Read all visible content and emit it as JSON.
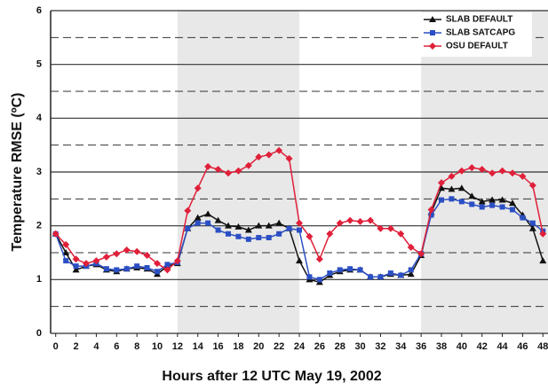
{
  "chart_data": {
    "type": "line",
    "xlabel": "Hours after 12 UTC May 19, 2002",
    "ylabel": "Temperature RMSE (ºC)",
    "x": [
      0,
      1,
      2,
      3,
      4,
      5,
      6,
      7,
      8,
      9,
      10,
      11,
      12,
      13,
      14,
      15,
      16,
      17,
      18,
      19,
      20,
      21,
      22,
      23,
      24,
      25,
      26,
      27,
      28,
      29,
      30,
      31,
      32,
      33,
      34,
      35,
      36,
      37,
      38,
      39,
      40,
      41,
      42,
      43,
      44,
      45,
      46,
      47,
      48
    ],
    "xlim": [
      -0.5,
      48.5
    ],
    "xticks": [
      0,
      2,
      4,
      6,
      8,
      10,
      12,
      14,
      16,
      18,
      20,
      22,
      24,
      26,
      28,
      30,
      32,
      34,
      36,
      38,
      40,
      42,
      44,
      46,
      48
    ],
    "ylim": [
      0,
      6
    ],
    "yticks": [
      0,
      1,
      2,
      3,
      4,
      5,
      6
    ],
    "yminor_ticks": [
      0.5,
      1.5,
      2.5,
      3.5,
      4.5,
      5.5
    ],
    "grid": true,
    "shaded_ranges": [
      [
        12,
        24
      ],
      [
        36,
        48.5
      ]
    ],
    "legend": "upper right",
    "series": [
      {
        "name": "SLAB DEFAULT",
        "color": "#111111",
        "marker": "triangle",
        "values": [
          1.85,
          1.5,
          1.18,
          1.25,
          1.28,
          1.18,
          1.15,
          1.2,
          1.22,
          1.2,
          1.1,
          1.25,
          1.3,
          1.95,
          2.15,
          2.22,
          2.1,
          2.0,
          1.98,
          1.92,
          2.0,
          2.0,
          2.05,
          1.95,
          1.35,
          1.0,
          0.95,
          1.08,
          1.15,
          1.18,
          1.18,
          1.05,
          1.05,
          1.1,
          1.08,
          1.1,
          1.45,
          2.25,
          2.7,
          2.68,
          2.7,
          2.55,
          2.45,
          2.48,
          2.48,
          2.42,
          2.2,
          1.95,
          1.35
        ]
      },
      {
        "name": "SLAB SATCAPG",
        "color": "#2b4fc4",
        "marker": "square",
        "values": [
          1.85,
          1.35,
          1.25,
          1.25,
          1.3,
          1.2,
          1.18,
          1.2,
          1.25,
          1.22,
          1.15,
          1.28,
          1.32,
          1.95,
          2.05,
          2.05,
          1.92,
          1.85,
          1.8,
          1.75,
          1.78,
          1.78,
          1.85,
          1.95,
          1.92,
          1.05,
          1.0,
          1.12,
          1.18,
          1.2,
          1.18,
          1.05,
          1.05,
          1.12,
          1.08,
          1.18,
          1.48,
          2.2,
          2.48,
          2.5,
          2.45,
          2.4,
          2.35,
          2.38,
          2.35,
          2.3,
          2.15,
          2.05,
          1.9
        ]
      },
      {
        "name": "OSU DEFAULT",
        "color": "#e0203a",
        "marker": "diamond",
        "values": [
          1.85,
          1.65,
          1.38,
          1.3,
          1.35,
          1.42,
          1.48,
          1.55,
          1.52,
          1.45,
          1.3,
          1.18,
          1.35,
          2.28,
          2.7,
          3.1,
          3.05,
          2.98,
          3.02,
          3.12,
          3.28,
          3.32,
          3.4,
          3.25,
          2.05,
          1.8,
          1.38,
          1.85,
          2.05,
          2.1,
          2.08,
          2.1,
          1.95,
          1.95,
          1.85,
          1.6,
          1.48,
          2.3,
          2.8,
          2.92,
          3.02,
          3.08,
          3.05,
          2.98,
          3.02,
          2.98,
          2.92,
          2.75,
          1.85
        ]
      }
    ]
  }
}
